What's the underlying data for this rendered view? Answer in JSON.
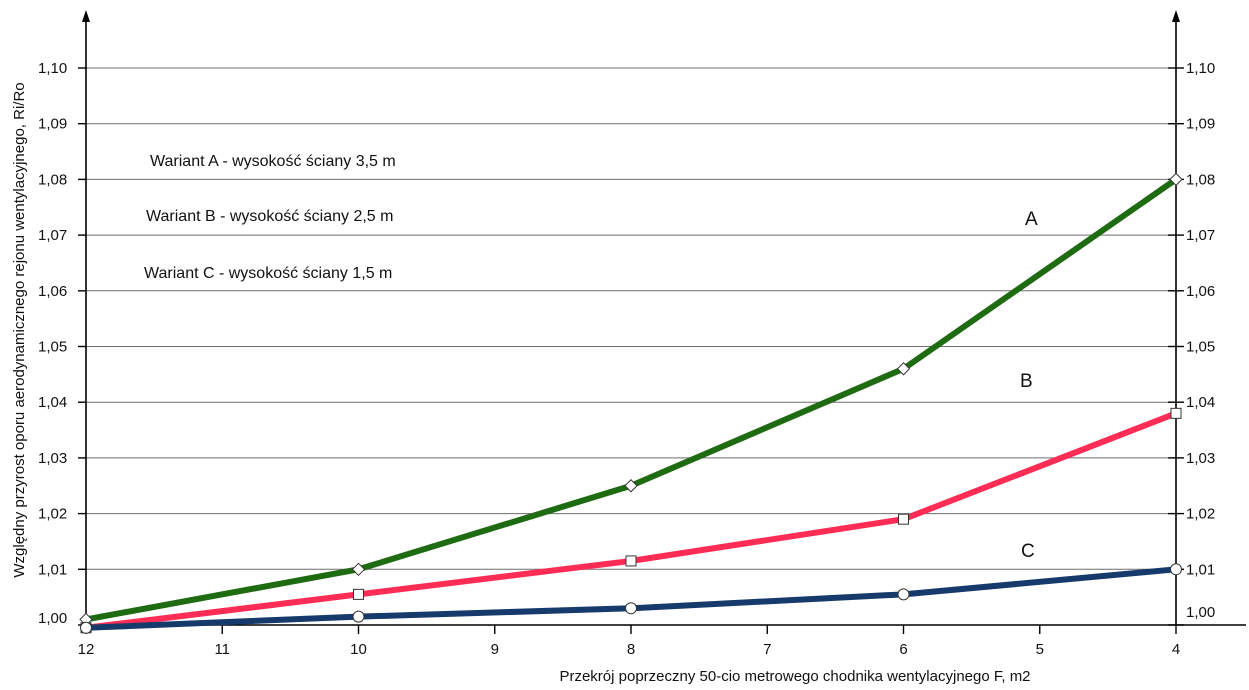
{
  "chart_data": {
    "type": "line",
    "title": "",
    "xlabel": "Przekrój poprzeczny 50-cio metrowego chodnika wentylacyjnego F, m2",
    "ylabel": "Względny przyrost oporu aerodynamicznego rejonu wentylacyjnego, Ri/Ro",
    "xlim": [
      12,
      4
    ],
    "ylim": [
      1.0,
      1.1
    ],
    "x_ticks": [
      "12",
      "11",
      "10",
      "9",
      "8",
      "7",
      "6",
      "5",
      "4"
    ],
    "y_ticks": [
      "1,00",
      "1,01",
      "1,02",
      "1,03",
      "1,04",
      "1,05",
      "1,06",
      "1,07",
      "1,08",
      "1,09",
      "1,10"
    ],
    "grid": true,
    "annotations": [
      "Wariant A - wysokość ściany 3,5 m",
      "Wariant B - wysokość ściany 2,5 m",
      "Wariant C - wysokość ściany 1,5 m"
    ],
    "series": [
      {
        "name": "A",
        "color": "#1f6b12",
        "marker": "diamond",
        "x": [
          12,
          10,
          8,
          6,
          4
        ],
        "y": [
          1.001,
          1.01,
          1.025,
          1.046,
          1.08
        ]
      },
      {
        "name": "B",
        "color": "#ff2d55",
        "marker": "square",
        "x": [
          12,
          10,
          8,
          6,
          4
        ],
        "y": [
          0.9995,
          1.0055,
          1.0115,
          1.019,
          1.038
        ]
      },
      {
        "name": "C",
        "color": "#163a6b",
        "marker": "circle",
        "x": [
          12,
          10,
          8,
          6,
          4
        ],
        "y": [
          0.9995,
          1.0015,
          1.003,
          1.0055,
          1.01
        ]
      }
    ]
  }
}
